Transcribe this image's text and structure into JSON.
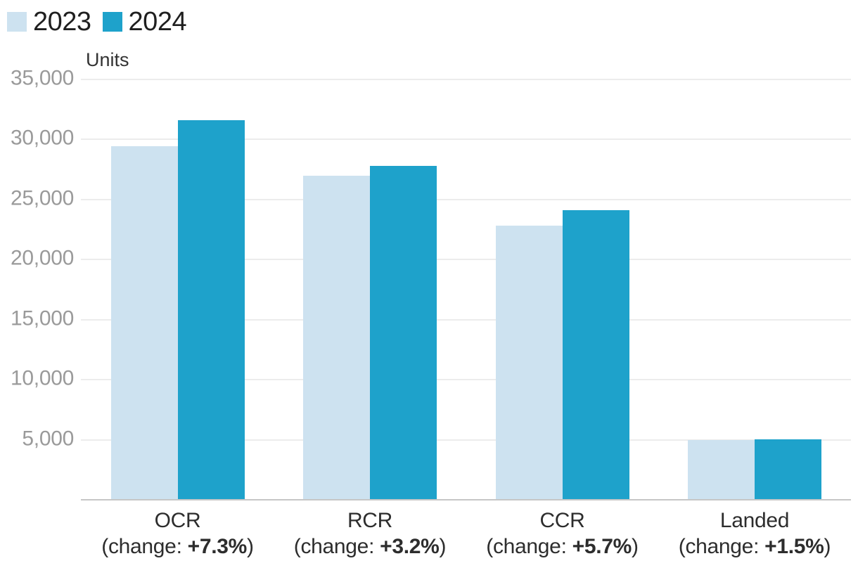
{
  "legend": {
    "items": [
      {
        "label": "2023",
        "color": "#cde2f0"
      },
      {
        "label": "2024",
        "color": "#1ea2cb"
      }
    ]
  },
  "chart_data": {
    "type": "bar",
    "title": "",
    "ylabel": "Units",
    "xlabel": "",
    "ylim": [
      0,
      35000
    ],
    "yticks": [
      5000,
      10000,
      15000,
      20000,
      25000,
      30000,
      35000
    ],
    "ytick_labels": [
      "5,000",
      "10,000",
      "15,000",
      "20,000",
      "25,000",
      "30,000",
      "35,000"
    ],
    "grid": true,
    "legend_position": "top-left",
    "categories": [
      "OCR",
      "RCR",
      "CCR",
      "Landed"
    ],
    "category_changes": [
      "+7.3%",
      "+3.2%",
      "+5.7%",
      "+1.5%"
    ],
    "category_sublabel_prefix": "(change: ",
    "category_sublabel_suffix": ")",
    "series": [
      {
        "name": "2023",
        "color": "#cde2f0",
        "values": [
          29400,
          26900,
          22750,
          4900
        ]
      },
      {
        "name": "2024",
        "color": "#1ea2cb",
        "values": [
          31550,
          27760,
          24050,
          4975
        ]
      }
    ],
    "style": {
      "grid_color": "#ececec",
      "baseline_color": "#c6c6c6",
      "tick_label_color": "#9a9a9a",
      "category_label_color": "#2d2d2d",
      "legend_text_color": "#1f1f1f"
    }
  }
}
